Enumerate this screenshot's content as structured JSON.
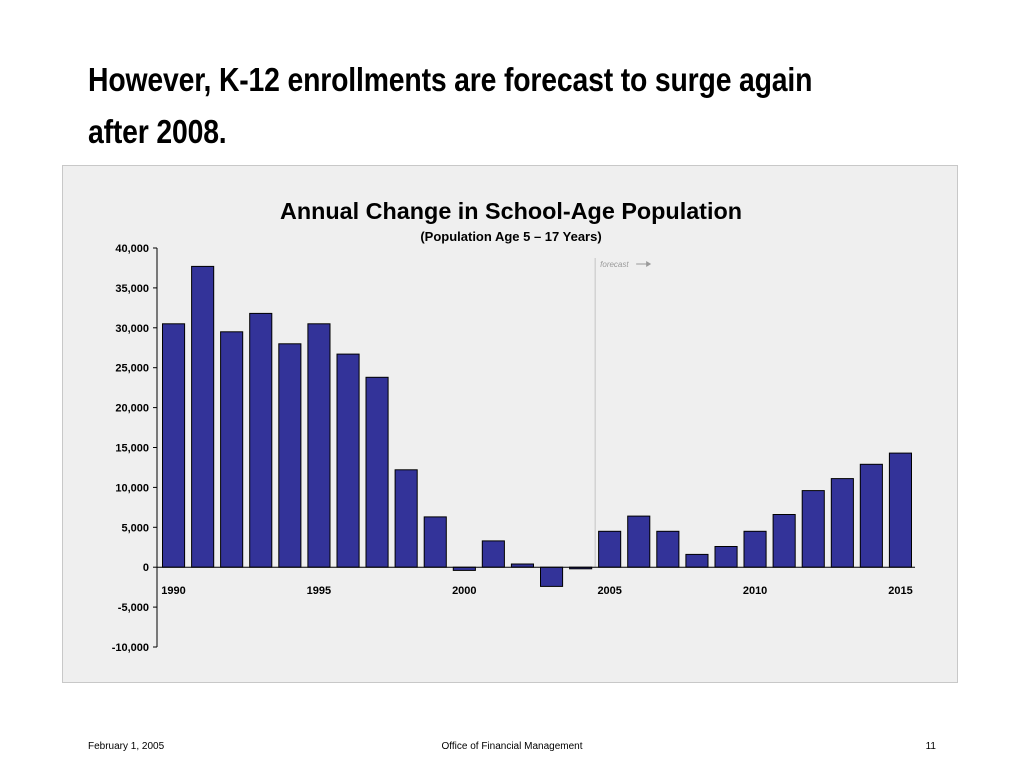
{
  "slide": {
    "title": "However, K-12 enrollments are forecast to surge again after 2008."
  },
  "footer": {
    "date": "February 1, 2005",
    "organization": "Office of Financial Management",
    "page_number": "11"
  },
  "chart_data": {
    "type": "bar",
    "title": "Annual Change in School-Age Population",
    "subtitle": "(Population Age 5 – 17 Years)",
    "annotation": "forecast",
    "forecast_start_year": 2005,
    "categories": [
      1990,
      1991,
      1992,
      1993,
      1994,
      1995,
      1996,
      1997,
      1998,
      1999,
      2000,
      2001,
      2002,
      2003,
      2004,
      2005,
      2006,
      2007,
      2008,
      2009,
      2010,
      2011,
      2012,
      2013,
      2014,
      2015
    ],
    "values": [
      30500,
      37700,
      29500,
      31800,
      28000,
      30500,
      26700,
      23800,
      12200,
      6300,
      -400,
      3300,
      400,
      -2400,
      -200,
      4500,
      6400,
      4500,
      1600,
      2600,
      4500,
      6600,
      9600,
      11100,
      12900,
      14300
    ],
    "x_tick_labels": [
      "1990",
      "1995",
      "2000",
      "2005",
      "2010",
      "2015"
    ],
    "y_tick_labels": [
      "40,000",
      "35,000",
      "30,000",
      "25,000",
      "20,000",
      "15,000",
      "10,000",
      "5,000",
      "0",
      "-5,000",
      "-10,000"
    ],
    "ylim": [
      -10000,
      40000
    ],
    "bar_color": "#333399",
    "grid": false
  }
}
